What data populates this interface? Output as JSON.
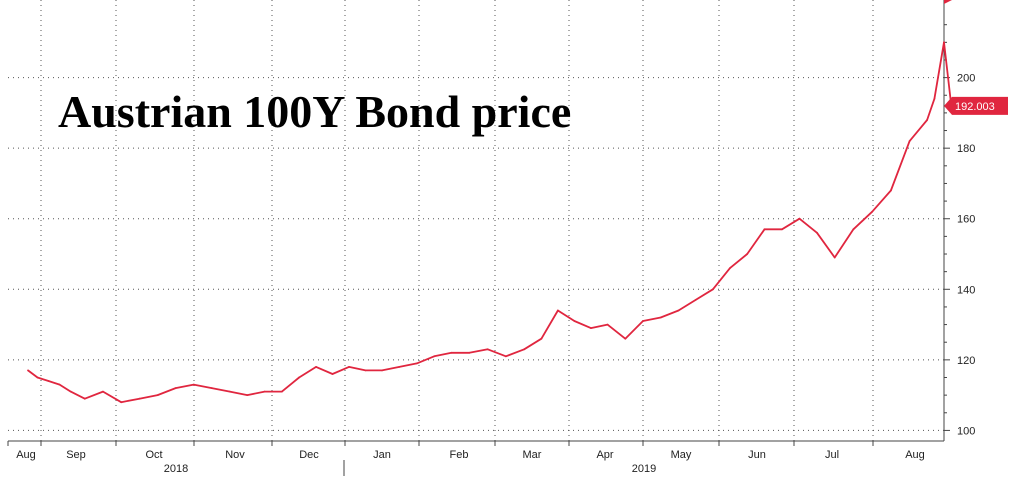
{
  "chart_data": {
    "type": "line",
    "title": "Austrian 100Y Bond price",
    "xlabel": "",
    "ylabel": "",
    "ylim": [
      97,
      222
    ],
    "y_ticks": [
      100,
      120,
      140,
      160,
      180,
      200
    ],
    "y_tick_labels": [
      "100",
      "120",
      "140",
      "160",
      "180",
      "200"
    ],
    "x_months": [
      "Aug",
      "Sep",
      "Oct",
      "Nov",
      "Dec",
      "Jan",
      "Feb",
      "Mar",
      "Apr",
      "May",
      "Jun",
      "Jul",
      "Aug"
    ],
    "x_years": [
      "2018",
      "2019"
    ],
    "grid": true,
    "last_value_label": "192.003",
    "line_color": "#e0263f",
    "x": [
      "2018-08-01",
      "2018-08-07",
      "2018-08-14",
      "2018-08-21",
      "2018-08-28",
      "2018-09-04",
      "2018-09-11",
      "2018-09-18",
      "2018-09-25",
      "2018-10-02",
      "2018-10-09",
      "2018-10-16",
      "2018-10-23",
      "2018-10-30",
      "2018-11-06",
      "2018-11-13",
      "2018-11-20",
      "2018-11-27",
      "2018-12-04",
      "2018-12-11",
      "2018-12-18",
      "2018-12-25",
      "2019-01-01",
      "2019-01-08",
      "2019-01-15",
      "2019-01-22",
      "2019-01-29",
      "2019-02-05",
      "2019-02-12",
      "2019-02-19",
      "2019-02-26",
      "2019-03-05",
      "2019-03-12",
      "2019-03-19",
      "2019-03-26",
      "2019-04-02",
      "2019-04-09",
      "2019-04-16",
      "2019-04-23",
      "2019-04-30",
      "2019-05-07",
      "2019-05-14",
      "2019-05-21",
      "2019-05-28",
      "2019-06-04",
      "2019-06-11",
      "2019-06-18",
      "2019-06-25",
      "2019-07-02",
      "2019-07-09",
      "2019-07-16",
      "2019-07-23",
      "2019-07-30",
      "2019-08-06",
      "2019-08-09",
      "2019-08-13",
      "2019-08-16"
    ],
    "series": [
      {
        "values": [
          117,
          115,
          114,
          113,
          111,
          109,
          111,
          108,
          109,
          110,
          112,
          113,
          112,
          111,
          110,
          111,
          111,
          115,
          118,
          116,
          118,
          117,
          117,
          118,
          119,
          121,
          122,
          122,
          123,
          121,
          123,
          126,
          134,
          131,
          129,
          130,
          126,
          131,
          132,
          134,
          137,
          140,
          146,
          150,
          157,
          157,
          160,
          156,
          149,
          157,
          162,
          168,
          182,
          188,
          194,
          210,
          192
        ]
      }
    ]
  }
}
